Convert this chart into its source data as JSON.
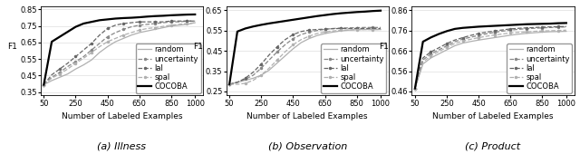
{
  "x": [
    50,
    100,
    150,
    200,
    250,
    300,
    350,
    400,
    450,
    500,
    550,
    600,
    650,
    700,
    750,
    800,
    850,
    900,
    950,
    1000
  ],
  "subplots": [
    {
      "caption": "(a) Illness",
      "ylabel": "F1",
      "ylim": [
        0.33,
        0.87
      ],
      "yticks": [
        0.35,
        0.45,
        0.55,
        0.65,
        0.75,
        0.85
      ],
      "series": {
        "random": [
          0.395,
          0.42,
          0.44,
          0.46,
          0.49,
          0.515,
          0.545,
          0.59,
          0.625,
          0.655,
          0.675,
          0.695,
          0.71,
          0.72,
          0.73,
          0.74,
          0.75,
          0.755,
          0.76,
          0.77
        ],
        "uncertainty": [
          0.395,
          0.44,
          0.47,
          0.505,
          0.535,
          0.565,
          0.605,
          0.645,
          0.685,
          0.71,
          0.73,
          0.745,
          0.755,
          0.76,
          0.765,
          0.77,
          0.775,
          0.775,
          0.78,
          0.78
        ],
        "lal": [
          0.395,
          0.455,
          0.49,
          0.525,
          0.565,
          0.605,
          0.645,
          0.695,
          0.735,
          0.755,
          0.765,
          0.77,
          0.775,
          0.775,
          0.775,
          0.775,
          0.78,
          0.78,
          0.78,
          0.78
        ],
        "spal": [
          0.395,
          0.435,
          0.46,
          0.49,
          0.525,
          0.555,
          0.59,
          0.625,
          0.655,
          0.675,
          0.695,
          0.71,
          0.725,
          0.735,
          0.74,
          0.748,
          0.755,
          0.76,
          0.765,
          0.77
        ],
        "COCOBA": [
          0.395,
          0.655,
          0.685,
          0.715,
          0.745,
          0.765,
          0.775,
          0.785,
          0.79,
          0.795,
          0.798,
          0.8,
          0.803,
          0.807,
          0.81,
          0.812,
          0.815,
          0.817,
          0.819,
          0.82
        ]
      }
    },
    {
      "caption": "(b) Observation",
      "ylabel": "F1",
      "ylim": [
        0.23,
        0.67
      ],
      "yticks": [
        0.25,
        0.35,
        0.45,
        0.55,
        0.65
      ],
      "series": {
        "random": [
          0.285,
          0.295,
          0.305,
          0.315,
          0.33,
          0.355,
          0.39,
          0.425,
          0.46,
          0.49,
          0.51,
          0.525,
          0.535,
          0.542,
          0.548,
          0.552,
          0.554,
          0.555,
          0.555,
          0.555
        ],
        "uncertainty": [
          0.285,
          0.295,
          0.31,
          0.33,
          0.365,
          0.405,
          0.445,
          0.48,
          0.51,
          0.53,
          0.542,
          0.55,
          0.556,
          0.56,
          0.562,
          0.563,
          0.564,
          0.565,
          0.565,
          0.565
        ],
        "lal": [
          0.285,
          0.295,
          0.315,
          0.345,
          0.385,
          0.43,
          0.47,
          0.505,
          0.53,
          0.545,
          0.552,
          0.555,
          0.557,
          0.559,
          0.56,
          0.56,
          0.56,
          0.56,
          0.56,
          0.56
        ],
        "spal": [
          0.285,
          0.285,
          0.29,
          0.305,
          0.33,
          0.365,
          0.405,
          0.445,
          0.48,
          0.505,
          0.522,
          0.535,
          0.543,
          0.548,
          0.551,
          0.553,
          0.554,
          0.555,
          0.555,
          0.555
        ],
        "COCOBA": [
          0.285,
          0.545,
          0.56,
          0.57,
          0.578,
          0.585,
          0.591,
          0.597,
          0.603,
          0.609,
          0.615,
          0.621,
          0.626,
          0.631,
          0.635,
          0.638,
          0.641,
          0.643,
          0.646,
          0.648
        ]
      }
    },
    {
      "caption": "(c) Product",
      "ylabel": "F1",
      "ylim": [
        0.44,
        0.88
      ],
      "yticks": [
        0.46,
        0.56,
        0.66,
        0.76,
        0.86
      ],
      "series": {
        "random": [
          0.475,
          0.595,
          0.625,
          0.645,
          0.665,
          0.685,
          0.698,
          0.706,
          0.713,
          0.719,
          0.725,
          0.731,
          0.737,
          0.742,
          0.746,
          0.749,
          0.752,
          0.754,
          0.755,
          0.756
        ],
        "uncertainty": [
          0.475,
          0.615,
          0.645,
          0.665,
          0.685,
          0.705,
          0.718,
          0.727,
          0.736,
          0.744,
          0.751,
          0.757,
          0.762,
          0.766,
          0.769,
          0.771,
          0.773,
          0.775,
          0.776,
          0.778
        ],
        "lal": [
          0.475,
          0.625,
          0.655,
          0.675,
          0.696,
          0.713,
          0.725,
          0.736,
          0.745,
          0.752,
          0.758,
          0.763,
          0.768,
          0.771,
          0.773,
          0.775,
          0.777,
          0.778,
          0.779,
          0.78
        ],
        "spal": [
          0.475,
          0.605,
          0.635,
          0.657,
          0.677,
          0.696,
          0.708,
          0.717,
          0.725,
          0.732,
          0.738,
          0.743,
          0.748,
          0.751,
          0.753,
          0.756,
          0.758,
          0.759,
          0.76,
          0.762
        ],
        "COCOBA": [
          0.475,
          0.705,
          0.726,
          0.743,
          0.757,
          0.768,
          0.773,
          0.776,
          0.779,
          0.781,
          0.783,
          0.785,
          0.787,
          0.789,
          0.791,
          0.792,
          0.793,
          0.794,
          0.796,
          0.797
        ]
      }
    }
  ],
  "xticks": [
    50,
    250,
    450,
    650,
    850,
    1000
  ],
  "xlabel": "Number of Labeled Examples",
  "line_styles": {
    "random": {
      "color": "#b0b0b0",
      "linestyle": "-",
      "linewidth": 0.9,
      "marker": null
    },
    "uncertainty": {
      "color": "#888888",
      "linestyle": "--",
      "linewidth": 0.9,
      "marker": ".",
      "markersize": 3
    },
    "lal": {
      "color": "#666666",
      "linestyle": "--",
      "linewidth": 0.9,
      "marker": ".",
      "markersize": 3
    },
    "spal": {
      "color": "#b0b0b0",
      "linestyle": "--",
      "linewidth": 0.9,
      "marker": ".",
      "markersize": 3
    },
    "COCOBA": {
      "color": "#000000",
      "linestyle": "-",
      "linewidth": 1.6,
      "marker": null
    }
  },
  "legend_labels": [
    "random",
    "uncertainty",
    "lal",
    "spal",
    "COCOBA"
  ],
  "background_color": "#ffffff",
  "caption_fontsize": 8,
  "label_fontsize": 6.5,
  "tick_fontsize": 6,
  "legend_fontsize": 6
}
